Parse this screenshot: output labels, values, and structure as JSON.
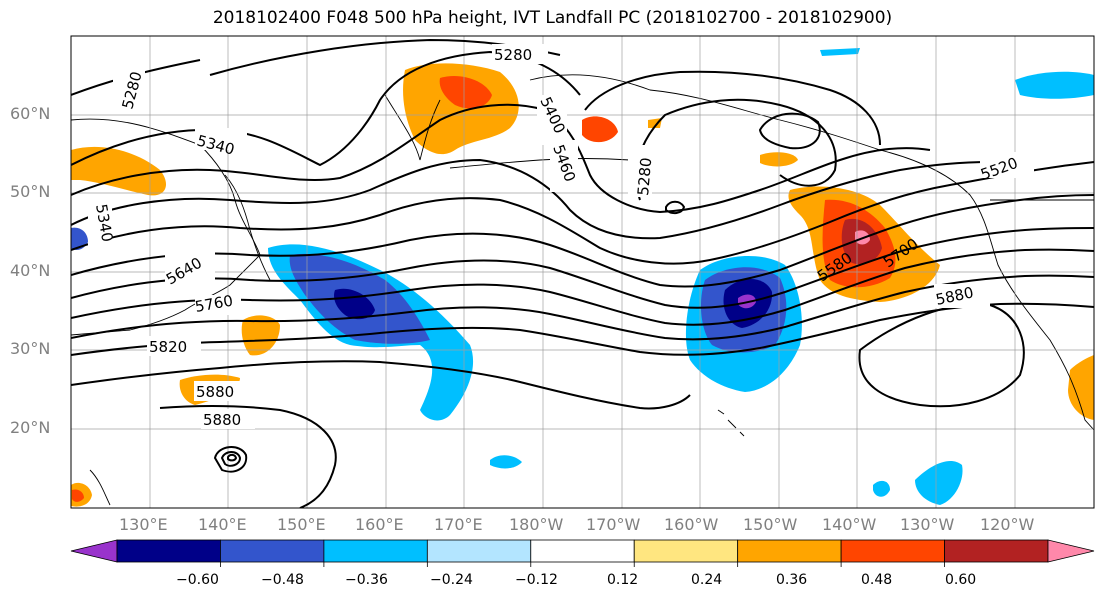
{
  "title": "2018102400 F048 500 hPa height, IVT Landfall PC (2018102700 - 2018102900)",
  "lat_labels": [
    "60°N",
    "50°N",
    "40°N",
    "30°N",
    "20°N"
  ],
  "lon_labels": [
    "130°E",
    "140°E",
    "150°E",
    "160°E",
    "170°E",
    "180°W",
    "170°W",
    "160°W",
    "150°W",
    "140°W",
    "130°W",
    "120°W"
  ],
  "contour_labels": [
    "5280",
    "5280",
    "5340",
    "5340",
    "5400",
    "5460",
    "5280",
    "5520",
    "5640",
    "5760",
    "5820",
    "5880",
    "5880",
    "5580",
    "5700",
    "5880"
  ],
  "colorbar": {
    "tick_labels": [
      "−0.60",
      "−0.48",
      "−0.36",
      "−0.24",
      "−0.12",
      "0.12",
      "0.24",
      "0.36",
      "0.48",
      "0.60"
    ],
    "colors": [
      "#9933cc",
      "#000088",
      "#3355cc",
      "#00bfff",
      "#b3e5ff",
      "#ffffff",
      "#ffe680",
      "#ffa500",
      "#ff4500",
      "#b22222",
      "#ff88aa"
    ]
  },
  "colors": {
    "negative_shading": "#00bfff",
    "positive_shading": "#ffa500",
    "contour": "#000000",
    "grid": "#a0a0a0"
  }
}
